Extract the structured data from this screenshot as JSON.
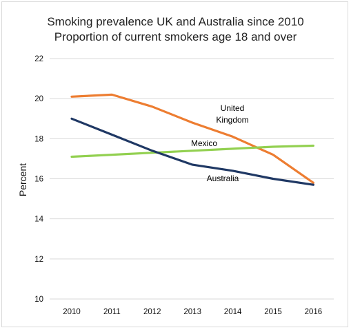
{
  "chart_data": {
    "type": "line",
    "title": "Smoking prevalence UK and Australia since 2010",
    "subtitle": "Proportion of current smokers age 18 and over",
    "xlabel": "",
    "ylabel": "Percent",
    "categories": [
      "2010",
      "2011",
      "2012",
      "2013",
      "2014",
      "2015",
      "2016"
    ],
    "ylim": [
      10,
      22
    ],
    "yticks": [
      "10",
      "12",
      "14",
      "16",
      "18",
      "20",
      "22"
    ],
    "grid": true,
    "series": [
      {
        "name": "United Kingdom",
        "label_lines": [
          "United",
          "Kingdom"
        ],
        "color": "#ed7d31",
        "values": [
          20.1,
          20.2,
          19.6,
          18.8,
          18.1,
          17.2,
          15.8
        ]
      },
      {
        "name": "Mexico",
        "label_lines": [
          "Mexico"
        ],
        "color": "#92d050",
        "values": [
          17.1,
          17.2,
          17.3,
          17.4,
          17.5,
          17.6,
          17.65
        ]
      },
      {
        "name": "Australia",
        "label_lines": [
          "Australia"
        ],
        "color": "#1f3864",
        "values": [
          19.0,
          18.2,
          17.4,
          16.7,
          16.4,
          16.0,
          15.7
        ]
      }
    ]
  }
}
